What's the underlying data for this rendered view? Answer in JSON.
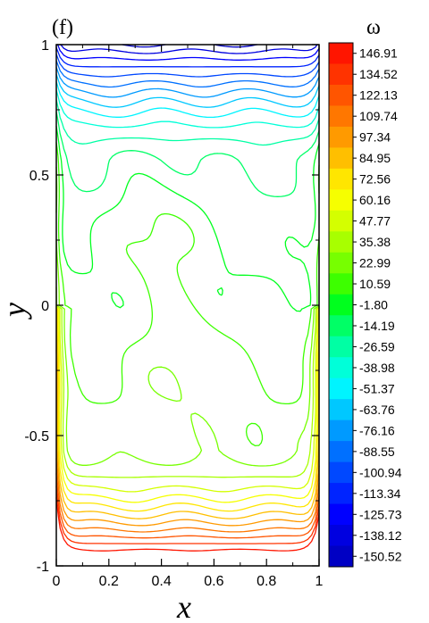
{
  "chart_data": {
    "type": "contour",
    "panel_label": "(f)",
    "xlabel": "x",
    "ylabel": "y",
    "xlim": [
      0,
      1
    ],
    "ylim": [
      -1,
      1
    ],
    "xticks": [
      "0",
      "0.2",
      "0.4",
      "0.6",
      "0.8",
      "1"
    ],
    "yticks": [
      "-1",
      "-0.5",
      "0",
      "0.5",
      "1"
    ],
    "colorbar": {
      "title": "ω",
      "levels": [
        "146.91",
        "134.52",
        "122.13",
        "109.74",
        "97.34",
        "84.95",
        "72.56",
        "60.16",
        "47.77",
        "35.38",
        "22.99",
        "10.59",
        "-1.80",
        "-14.19",
        "-26.59",
        "-38.98",
        "-51.37",
        "-63.76",
        "-76.16",
        "-88.55",
        "-100.94",
        "-113.34",
        "-125.73",
        "-138.12",
        "-150.52"
      ],
      "colors": [
        "#ff1500",
        "#ff3300",
        "#ff5500",
        "#ff7700",
        "#ff9a00",
        "#ffbf00",
        "#ffe600",
        "#f6ff00",
        "#d4ff00",
        "#a8ff00",
        "#77ff00",
        "#3dff00",
        "#00ff1e",
        "#00ff66",
        "#00ffa4",
        "#00ffd9",
        "#00f4ff",
        "#00c8ff",
        "#009aff",
        "#0070ff",
        "#0048ff",
        "#0024ff",
        "#0000ff",
        "#0000e0",
        "#0000c4"
      ]
    },
    "lines_note": "contour lines of vorticity field"
  }
}
